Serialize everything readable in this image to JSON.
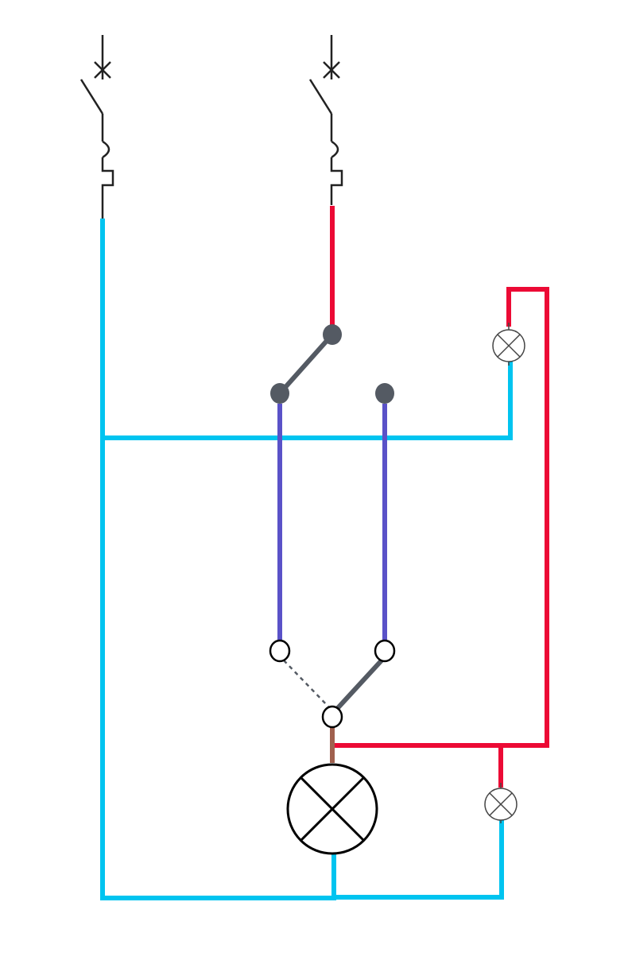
{
  "diagram": {
    "kind": "two-way switch lighting wiring diagram",
    "colors": {
      "neutral": "#00c4f0",
      "live": "#ec0a35",
      "traveller": "#5a52c8",
      "switched_live": "#a0604e",
      "switch_contact": "#545a63",
      "breaker": "#222222",
      "lamp": "#000000",
      "indicator": "#444444"
    },
    "components": {
      "breakers": [
        "breaker-neutral",
        "breaker-live"
      ],
      "switches": [
        "two-way-switch-top",
        "two-way-switch-bottom"
      ],
      "lamps": [
        "main-lamp"
      ],
      "indicators": [
        "indicator-lamp-top",
        "indicator-lamp-bottom"
      ]
    }
  }
}
